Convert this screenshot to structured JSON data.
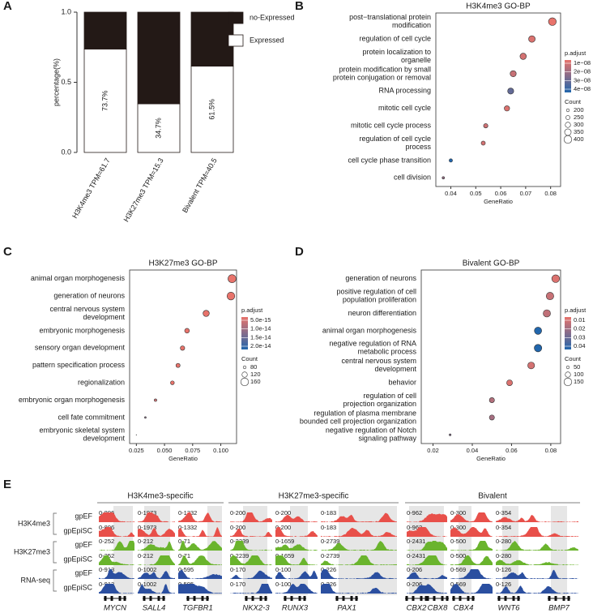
{
  "chart_data": [
    {
      "panel": "A",
      "type": "bar",
      "stacked": true,
      "ylabel": "percentage(%)",
      "categories": [
        "H3K4me3 TPM=61.7",
        "H3K27me3 TPM=15.3",
        "Bivalent TPM=40.5"
      ],
      "series": [
        {
          "name": "Expressed",
          "color": "#ffffff",
          "values": [
            0.737,
            0.347,
            0.615
          ],
          "value_labels": [
            "73.7%",
            "34.7%",
            "61.5%"
          ]
        },
        {
          "name": "no-Expressed",
          "color": "#231916",
          "values": [
            0.263,
            0.653,
            0.385
          ]
        }
      ],
      "ylim": [
        0,
        1
      ],
      "yticks": [
        {
          "value": 0,
          "label": "0.0"
        },
        0.5,
        {
          "value": 1,
          "label": "1.0"
        }
      ]
    },
    {
      "panel": "B",
      "type": "dot",
      "title": "H3K4me3 GO-BP",
      "xlabel": "GeneRatio",
      "categories": [
        [
          "post−translational protein",
          "modification"
        ],
        [
          "regulation of cell cycle"
        ],
        [
          "protein localization to",
          "organelle"
        ],
        [
          "protein modification by small",
          "protein conjugation or removal"
        ],
        [
          "RNA processing"
        ],
        [
          "mitotic cell cycle"
        ],
        [
          "mitotic cell cycle process"
        ],
        [
          "regulation of cell cycle",
          "process"
        ],
        [
          "cell cycle phase transition"
        ],
        [
          "cell division"
        ]
      ],
      "values": [
        0.0807,
        0.0725,
        0.069,
        0.065,
        0.064,
        0.0625,
        0.054,
        0.053,
        0.04,
        0.037
      ],
      "counts": [
        400,
        350,
        340,
        330,
        330,
        300,
        260,
        250,
        220,
        180
      ],
      "p_adjust": [
        1e-08,
        1.2e-08,
        1.3e-08,
        1.5e-08,
        3e-08,
        1.2e-08,
        1.4e-08,
        1.3e-08,
        4e-08,
        2.2e-08
      ],
      "xlim": [
        0.034,
        0.084
      ],
      "xticks": [
        0.04,
        0.05,
        0.06,
        0.07,
        0.08
      ],
      "color_title": "p.adjust",
      "colors": [
        "#e8736b",
        "#2166ac"
      ],
      "color_lim": [
        1e-08,
        4e-08
      ],
      "color_ticks": [
        {
          "value": 1e-08,
          "label": "1e−08"
        },
        {
          "value": 2e-08,
          "label": "2e−08"
        },
        {
          "value": 3e-08,
          "label": "3e−08"
        },
        {
          "value": 4e-08,
          "label": "4e−08"
        }
      ],
      "size_title": "Count",
      "size_ticks": [
        200,
        250,
        300,
        350,
        400
      ]
    },
    {
      "panel": "C",
      "type": "dot",
      "title": "H3K27me3 GO-BP",
      "xlabel": "GeneRatio",
      "categories": [
        [
          "animal organ morphogenesis"
        ],
        [
          "generation of neurons"
        ],
        [
          "central nervous system",
          "development"
        ],
        [
          "embryonic morphogenesis"
        ],
        [
          "sensory organ development"
        ],
        [
          "pattern specification process"
        ],
        [
          "regionalization"
        ],
        [
          "embryonic organ morphogenesis"
        ],
        [
          "cell fate commitment"
        ],
        [
          "embryonic skeletal system",
          "development"
        ]
      ],
      "values": [
        0.11,
        0.109,
        0.087,
        0.07,
        0.066,
        0.062,
        0.057,
        0.042,
        0.033,
        0.025
      ],
      "counts": [
        165,
        160,
        135,
        110,
        105,
        100,
        95,
        75,
        60,
        40
      ],
      "p_adjust": [
        5e-15,
        5e-15,
        5e-15,
        5e-15,
        5e-15,
        5e-15,
        5e-15,
        7e-15,
        1.2e-14,
        2e-14
      ],
      "xlim": [
        0.019,
        0.114
      ],
      "xticks": [
        0.025,
        {
          "value": 0.05,
          "label": "0.050"
        },
        0.075,
        {
          "value": 0.1,
          "label": "0.100"
        }
      ],
      "color_title": "p.adjust",
      "colors": [
        "#e8736b",
        "#2166ac"
      ],
      "color_lim": [
        5e-15,
        2e-14
      ],
      "color_ticks": [
        {
          "value": 5e-15,
          "label": "5.0e-15"
        },
        {
          "value": 1e-14,
          "label": "1.0e-14"
        },
        {
          "value": 1.5e-14,
          "label": "1.5e-14"
        },
        {
          "value": 2e-14,
          "label": "2.0e-14"
        }
      ],
      "size_title": "Count",
      "size_ticks": [
        80,
        120,
        160
      ]
    },
    {
      "panel": "D",
      "type": "dot",
      "title": "Bivalent GO-BP",
      "xlabel": "GeneRatio",
      "categories": [
        [
          "generation of neurons"
        ],
        [
          "positive regulation of cell",
          "population proliferation"
        ],
        [
          "neuron differentiation"
        ],
        [
          "animal organ morphogenesis"
        ],
        [
          "negative regulation of RNA",
          "metabolic process"
        ],
        [
          "central nervous system",
          "development"
        ],
        [
          "behavior"
        ],
        [
          "regulation of cell",
          "projection organization"
        ],
        [
          "regulation of plasma membrane",
          "bounded cell projection organization"
        ],
        [
          "negative regulation of Notch",
          "signaling pathway"
        ]
      ],
      "values": [
        0.0825,
        0.0796,
        0.078,
        0.0735,
        0.0735,
        0.07,
        0.059,
        0.05,
        0.05,
        0.0287
      ],
      "counts": [
        150,
        145,
        140,
        140,
        145,
        130,
        110,
        95,
        95,
        30
      ],
      "p_adjust": [
        0.012,
        0.015,
        0.016,
        0.04,
        0.04,
        0.013,
        0.012,
        0.018,
        0.02,
        0.025
      ],
      "xlim": [
        0.014,
        0.085
      ],
      "xticks": [
        0.02,
        0.04,
        0.06,
        0.08
      ],
      "color_title": "p.adjust",
      "colors": [
        "#e8736b",
        "#2166ac"
      ],
      "color_lim": [
        0.01,
        0.04
      ],
      "color_ticks": [
        0.01,
        0.02,
        0.03,
        0.04
      ],
      "size_title": "Count",
      "size_ticks": [
        50,
        100,
        150
      ]
    }
  ],
  "browser": {
    "panel": "E",
    "groups": [
      "H3K4me3-specific",
      "H3K27me3-specific",
      "Bivalent"
    ],
    "marks": [
      {
        "name": "H3K4me3",
        "samples": [
          "gpEF",
          "gpEpiSC"
        ]
      },
      {
        "name": "H3K27me3",
        "samples": [
          "gpEF",
          "gpEpiSC"
        ]
      },
      {
        "name": "RNA-seq",
        "samples": [
          "gpEF",
          "gpEpiSC"
        ]
      }
    ],
    "ranges": [
      [
        "0-896",
        "0-1973",
        "0-1332",
        "0-200",
        "0-200",
        "0-183",
        "0-962",
        "0-300",
        "0-354"
      ],
      [
        "0-896",
        "0-1973",
        "0-1332",
        "0-200",
        "0-200",
        "0-183",
        "0-962",
        "0-300",
        "0-354"
      ],
      [
        "0-252",
        "0-212",
        "0-71",
        "0-2239",
        "0-1659",
        "0-2739",
        "0-2431",
        "0-500",
        "0-280"
      ],
      [
        "0-252",
        "0-212",
        "0-71",
        "0-2239",
        "0-1659",
        "0-2739",
        "0-2431",
        "0-500",
        "0-280"
      ],
      [
        "0-913",
        "0-1002",
        "0-595",
        "0-170",
        "0-100",
        "0-226",
        "0-206",
        "0-569",
        "0-126"
      ],
      [
        "0-913",
        "0-1002",
        "0-595",
        "0-170",
        "0-100",
        "0-226",
        "0-206",
        "0-569",
        "0-126"
      ]
    ],
    "genes": [
      "MYCN",
      "SALL4",
      "TGFBR1",
      "NKX2-3",
      "RUNX3",
      "PAX1",
      "CBX2",
      "CBX8",
      "CBX4",
      "WNT6",
      "BMP7"
    ]
  }
}
